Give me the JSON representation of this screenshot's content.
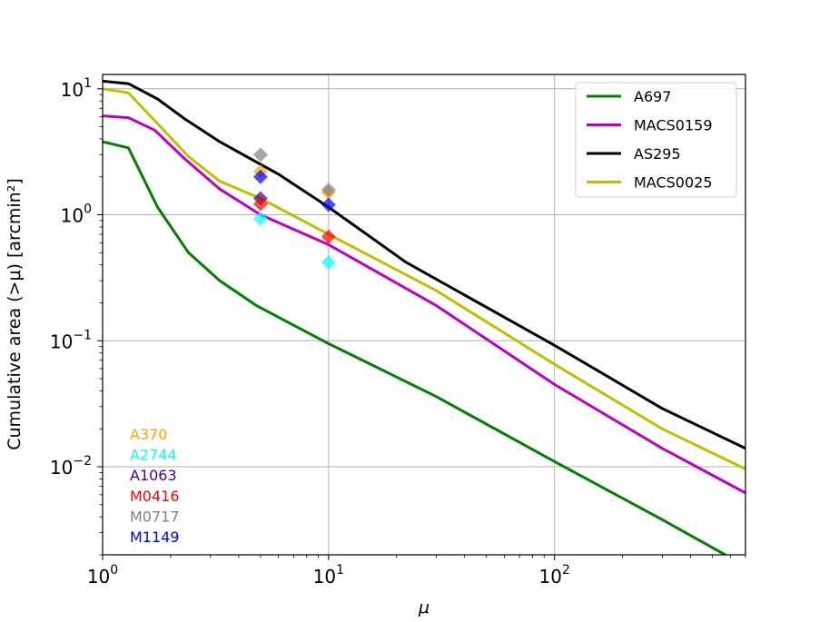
{
  "chart_data": {
    "type": "line",
    "xscale": "log",
    "yscale": "log",
    "xlim": [
      1,
      700
    ],
    "ylim": [
      0.002,
      13
    ],
    "xlabel": "μ",
    "ylabel": "Cumulative area (>μ) [arcmin²]",
    "grid": true,
    "legend_position": "top-right",
    "x_ticks": [
      {
        "value": 1,
        "base": "10",
        "exp": "0"
      },
      {
        "value": 10,
        "base": "10",
        "exp": "1"
      },
      {
        "value": 100,
        "base": "10",
        "exp": "2"
      }
    ],
    "y_ticks": [
      {
        "value": 10,
        "base": "10",
        "exp": "1"
      },
      {
        "value": 1,
        "base": "10",
        "exp": "0"
      },
      {
        "value": 0.1,
        "base": "10",
        "exp": "−1"
      },
      {
        "value": 0.01,
        "base": "10",
        "exp": "−2"
      }
    ],
    "series": [
      {
        "name": "A697",
        "color": "#008000",
        "x": [
          1,
          1.3,
          1.75,
          2.4,
          3.3,
          4.8,
          10,
          30,
          100,
          300,
          600
        ],
        "y": [
          3.8,
          3.4,
          1.15,
          0.5,
          0.3,
          0.19,
          0.095,
          0.036,
          0.011,
          0.0038,
          0.0019
        ]
      },
      {
        "name": "MACS0159",
        "color": "#bf00bf",
        "x": [
          1,
          1.3,
          1.7,
          2.3,
          3.3,
          5,
          10,
          30,
          100,
          300,
          700
        ],
        "y": [
          6.1,
          5.9,
          4.7,
          2.8,
          1.6,
          1.0,
          0.58,
          0.19,
          0.045,
          0.014,
          0.0062
        ]
      },
      {
        "name": "AS295",
        "color": "#000000",
        "x": [
          1,
          1.3,
          1.75,
          2.3,
          3.3,
          6,
          10,
          22,
          100,
          300,
          700
        ],
        "y": [
          11.5,
          11,
          8.3,
          5.8,
          3.8,
          2.1,
          1.15,
          0.42,
          0.092,
          0.029,
          0.014
        ]
      },
      {
        "name": "MACS0025",
        "color": "#bfbf00",
        "x": [
          1,
          1.3,
          1.75,
          2.4,
          3.3,
          5,
          10,
          30,
          100,
          300,
          700
        ],
        "y": [
          10,
          9.3,
          5.3,
          2.9,
          1.85,
          1.35,
          0.7,
          0.25,
          0.065,
          0.02,
          0.0096
        ]
      }
    ],
    "scatter": [
      {
        "name": "A370",
        "color": "#ffa500",
        "points": [
          [
            5,
            2.2
          ],
          [
            10,
            1.5
          ]
        ]
      },
      {
        "name": "A2744",
        "color": "#00ffff",
        "points": [
          [
            5,
            0.93
          ],
          [
            10,
            0.42
          ]
        ]
      },
      {
        "name": "A1063",
        "color": "#4b0082",
        "points": [
          [
            5,
            1.35
          ]
        ]
      },
      {
        "name": "M0416",
        "color": "#ff0000",
        "points": [
          [
            5,
            1.22
          ],
          [
            10,
            0.67
          ]
        ]
      },
      {
        "name": "M0717",
        "color": "#808080",
        "points": [
          [
            5,
            3.0
          ],
          [
            10,
            1.58
          ]
        ]
      },
      {
        "name": "M1149",
        "color": "#0000ff",
        "points": [
          [
            5,
            2.0
          ],
          [
            10,
            1.2
          ]
        ]
      }
    ]
  }
}
